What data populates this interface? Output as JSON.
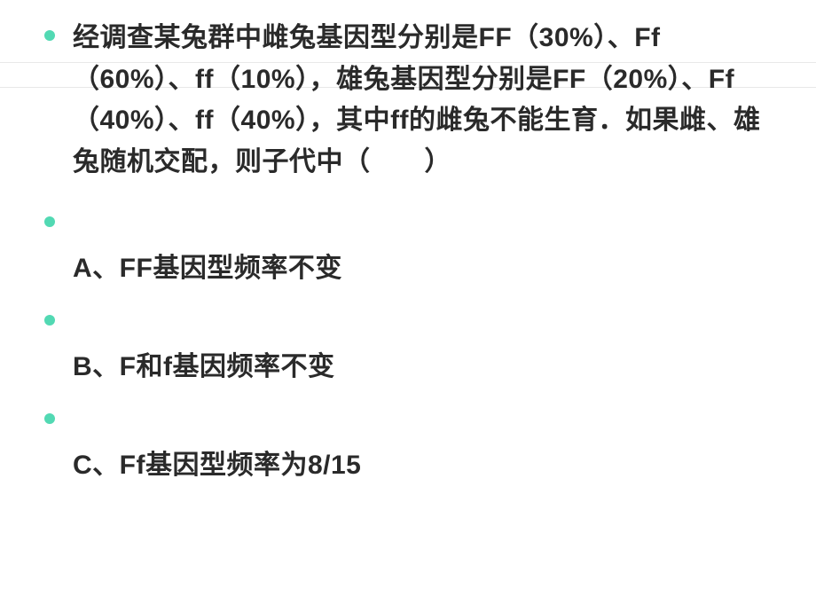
{
  "question": {
    "text": "经调查某兔群中雌兔基因型分别是FF（30%）、Ff（60%）、ff（10%），雄兔基因型分别是FF（20%）、Ff（40%）、ff（40%），其中ff的雌兔不能生育．如果雌、雄兔随机交配，则子代中（　　）",
    "text_color": "#2a2a2a",
    "fontsize": 30,
    "fontweight": 700
  },
  "options": [
    {
      "label": "A、FF基因型频率不变"
    },
    {
      "label": "B、F和f基因频率不变"
    },
    {
      "label": "C、Ff基因型频率为8/15"
    }
  ],
  "bullet": {
    "color": "#52d9b3",
    "size": 12
  },
  "background_color": "#ffffff",
  "ruled_line_color": "#e8e8e8"
}
